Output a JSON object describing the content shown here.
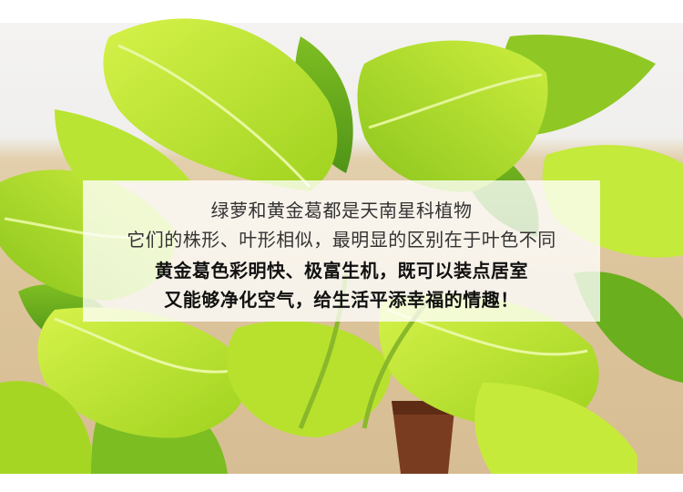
{
  "scene": {
    "subject": "golden pothos leaves",
    "colors": {
      "leaf_light": "#c8ec3a",
      "leaf_mid": "#a9dc21",
      "leaf_dark": "#6fb51e",
      "vein": "#e6f79a",
      "table": "#dcc49b",
      "pot": "#7a3c20"
    }
  },
  "caption": {
    "line1": "绿萝和黄金葛都是天南星科植物",
    "line2": "它们的株形、叶形相似，最明显的区别在于叶色不同",
    "line3": "黄金葛色彩明快、极富生机，既可以装点居室",
    "line4": "又能够净化空气，给生活平添幸福的情趣！"
  }
}
